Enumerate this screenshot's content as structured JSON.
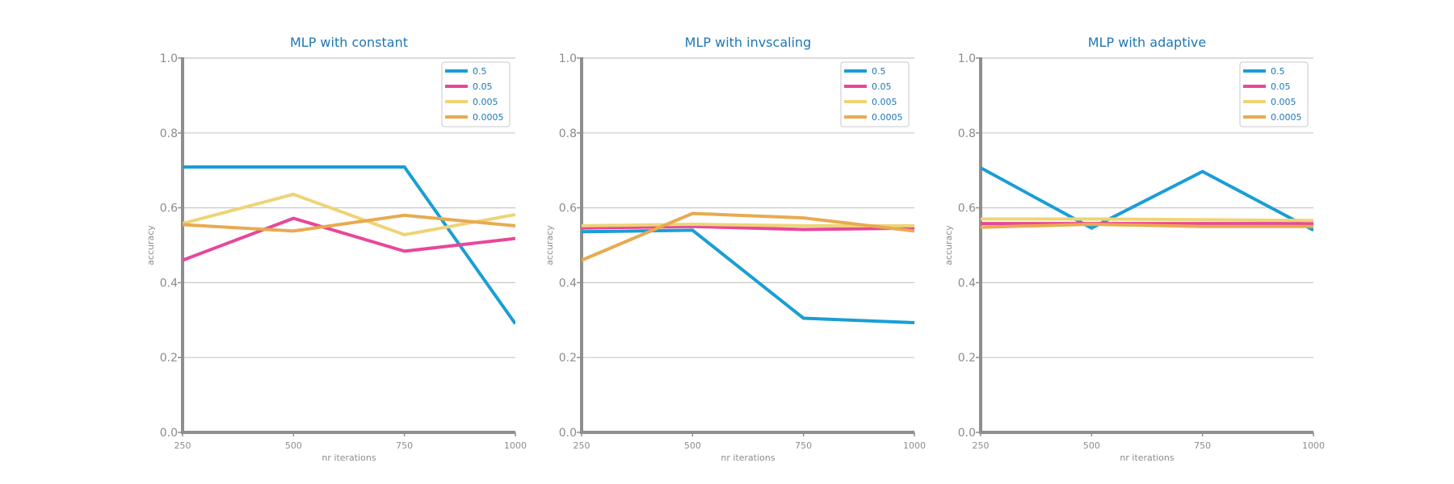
{
  "chart_data": [
    {
      "type": "line",
      "title": "MLP with constant",
      "xlabel": "nr iterations",
      "ylabel": "accuracy",
      "x": [
        250,
        500,
        750,
        1000
      ],
      "xlim": [
        250,
        1000
      ],
      "ylim": [
        0.0,
        1.0
      ],
      "yticks": [
        "0.0",
        "0.2",
        "0.4",
        "0.6",
        "0.8",
        "1.0"
      ],
      "xticks": [
        "250",
        "500",
        "750",
        "1000"
      ],
      "grid": "horizontal",
      "legend": "top-right",
      "series": [
        {
          "name": "0.5",
          "color": "#1a9ed4",
          "values": [
            0.709,
            0.709,
            0.709,
            0.29
          ]
        },
        {
          "name": "0.05",
          "color": "#e8479a",
          "values": [
            0.46,
            0.572,
            0.484,
            0.518
          ]
        },
        {
          "name": "0.005",
          "color": "#eed476",
          "values": [
            0.558,
            0.636,
            0.528,
            0.582
          ]
        },
        {
          "name": "0.0005",
          "color": "#e8aa50",
          "values": [
            0.555,
            0.538,
            0.58,
            0.552
          ]
        }
      ]
    },
    {
      "type": "line",
      "title": "MLP with invscaling",
      "xlabel": "nr iterations",
      "ylabel": "accuracy",
      "x": [
        250,
        500,
        750,
        1000
      ],
      "xlim": [
        250,
        1000
      ],
      "ylim": [
        0.0,
        1.0
      ],
      "yticks": [
        "0.0",
        "0.2",
        "0.4",
        "0.6",
        "0.8",
        "1.0"
      ],
      "xticks": [
        "250",
        "500",
        "750",
        "1000"
      ],
      "grid": "horizontal",
      "legend": "top-right",
      "series": [
        {
          "name": "0.5",
          "color": "#1a9ed4",
          "values": [
            0.536,
            0.54,
            0.305,
            0.293
          ]
        },
        {
          "name": "0.05",
          "color": "#e8479a",
          "values": [
            0.546,
            0.55,
            0.542,
            0.546
          ]
        },
        {
          "name": "0.005",
          "color": "#eed476",
          "values": [
            0.552,
            0.556,
            0.552,
            0.552
          ]
        },
        {
          "name": "0.0005",
          "color": "#e8aa50",
          "values": [
            0.46,
            0.585,
            0.573,
            0.538
          ]
        }
      ]
    },
    {
      "type": "line",
      "title": "MLP with adaptive",
      "xlabel": "nr iterations",
      "ylabel": "accuracy",
      "x": [
        250,
        500,
        750,
        1000
      ],
      "xlim": [
        250,
        1000
      ],
      "ylim": [
        0.0,
        1.0
      ],
      "yticks": [
        "0.0",
        "0.2",
        "0.4",
        "0.6",
        "0.8",
        "1.0"
      ],
      "xticks": [
        "250",
        "500",
        "750",
        "1000"
      ],
      "grid": "horizontal",
      "legend": "top-right",
      "series": [
        {
          "name": "0.5",
          "color": "#1a9ed4",
          "values": [
            0.707,
            0.546,
            0.697,
            0.54
          ]
        },
        {
          "name": "0.05",
          "color": "#e8479a",
          "values": [
            0.558,
            0.558,
            0.558,
            0.558
          ]
        },
        {
          "name": "0.005",
          "color": "#eed476",
          "values": [
            0.57,
            0.57,
            0.568,
            0.566
          ]
        },
        {
          "name": "0.0005",
          "color": "#e8aa50",
          "values": [
            0.548,
            0.556,
            0.55,
            0.55
          ]
        }
      ]
    }
  ]
}
